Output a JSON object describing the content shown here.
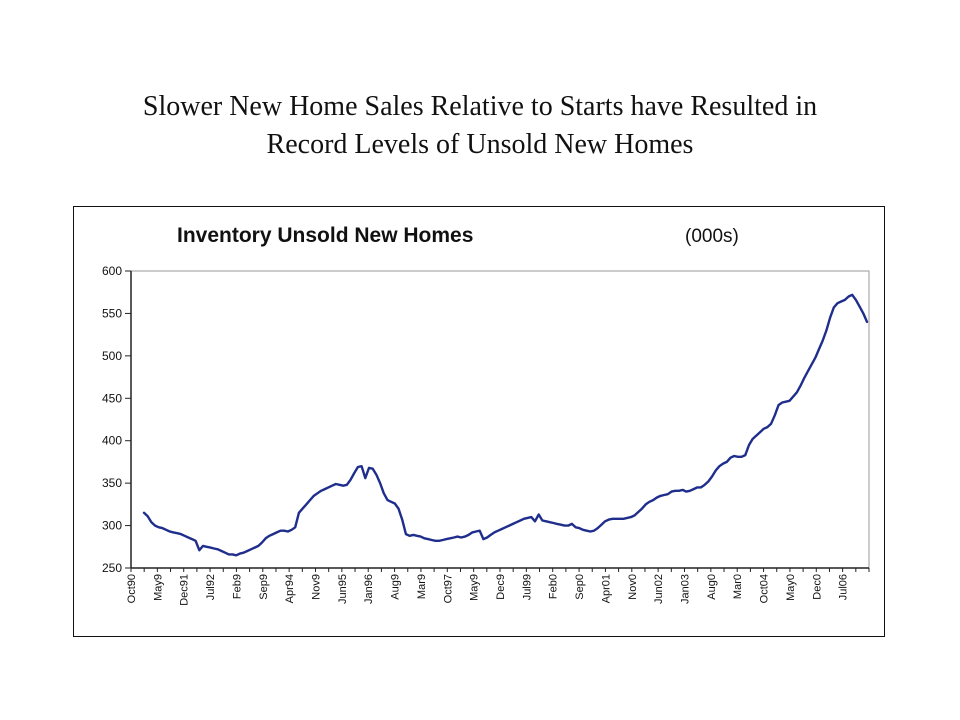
{
  "slide": {
    "title_line1": "Slower New Home Sales Relative to Starts have Resulted in",
    "title_line2": "Record Levels of Unsold New Homes"
  },
  "chart_data": {
    "type": "line",
    "title": "Inventory Unsold New Homes",
    "title_unit": "(000s)",
    "xlabel": "",
    "ylabel": "",
    "ylim": [
      250,
      600
    ],
    "yticks": [
      600,
      550,
      500,
      450,
      400,
      350,
      300,
      250
    ],
    "grid": false,
    "x_tick_labels": [
      "Oct90",
      "May9",
      "Dec91",
      "Jul92",
      "Feb9",
      "Sep9",
      "Apr94",
      "Nov9",
      "Jun95",
      "Jan96",
      "Aug9",
      "Mar9",
      "Oct97",
      "May9",
      "Dec9",
      "Jul99",
      "Feb0",
      "Sep0",
      "Apr01",
      "Nov0",
      "Jun02",
      "Jan03",
      "Aug0",
      "Mar0",
      "Oct04",
      "May0",
      "Dec0",
      "Jul06"
    ],
    "line_color": "#1f2e8c",
    "series": [
      {
        "values": [
          315,
          311,
          304,
          300,
          298,
          297,
          295,
          293,
          292,
          291,
          290,
          288,
          286,
          284,
          282,
          271,
          276,
          275,
          274,
          273,
          272,
          270,
          268,
          266,
          266,
          265,
          267,
          268,
          270,
          272,
          274,
          276,
          280,
          285,
          288,
          290,
          292,
          294,
          294,
          293,
          295,
          298,
          315,
          320,
          325,
          330,
          335,
          338,
          341,
          343,
          345,
          347,
          349,
          348,
          347,
          348,
          354,
          362,
          369,
          370,
          356,
          368,
          367,
          360,
          350,
          338,
          330,
          328,
          326,
          320,
          307,
          290,
          288,
          289,
          288,
          287,
          285,
          284,
          283,
          282,
          282,
          283,
          284,
          285,
          286,
          287,
          286,
          287,
          289,
          292,
          293,
          294,
          284,
          286,
          289,
          292,
          294,
          296,
          298,
          300,
          302,
          304,
          306,
          308,
          309,
          310,
          305,
          313,
          306,
          305,
          304,
          303,
          302,
          301,
          300,
          300,
          302,
          298,
          297,
          295,
          294,
          293,
          294,
          297,
          301,
          305,
          307,
          308,
          308,
          308,
          308,
          309,
          310,
          312,
          316,
          320,
          325,
          328,
          330,
          333,
          335,
          336,
          337,
          340,
          341,
          341,
          342,
          340,
          341,
          343,
          345,
          345,
          348,
          352,
          358,
          365,
          370,
          373,
          375,
          380,
          382,
          381,
          381,
          383,
          395,
          402,
          406,
          410,
          414,
          416,
          420,
          430,
          442,
          445,
          446,
          447,
          452,
          457,
          465,
          474,
          482,
          490,
          498,
          508,
          518,
          530,
          545,
          557,
          562,
          564,
          566,
          570,
          572,
          566,
          558,
          550,
          540
        ]
      }
    ]
  }
}
